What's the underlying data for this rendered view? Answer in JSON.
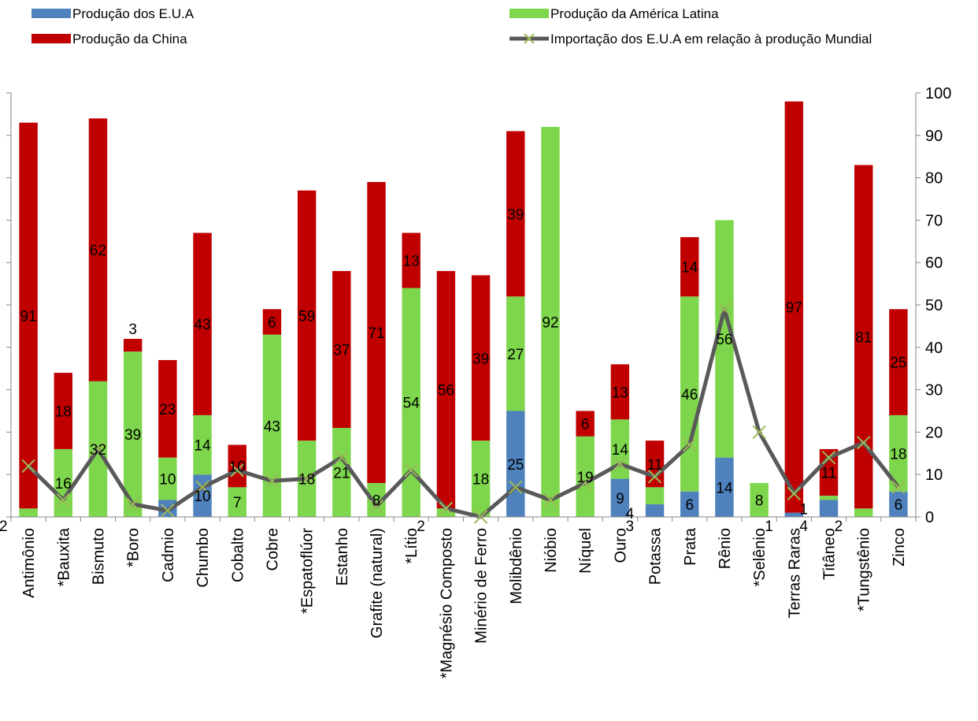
{
  "chart_data": {
    "type": "bar",
    "stacked": true,
    "categories": [
      "Antimônio",
      "*Bauxita",
      "Bismuto",
      "*Boro",
      "Cadmio",
      "Chumbo",
      "Cobalto",
      "Cobre",
      "*Espatoflúor",
      "Estanho",
      "Grafite (natural)",
      "*Lítio",
      "*Magnésio Composto",
      "Minério de Ferro",
      "Molibdênio",
      "Nióbio",
      "Níquel",
      "Ouro",
      "Potassa",
      "Prata",
      "Rênio",
      "*Selênio",
      "Terras Raras",
      "Titâneo",
      "*Tungstênio",
      "Zinco"
    ],
    "series": [
      {
        "name": "Produção dos E.U.A",
        "kind": "bar",
        "color": "#4f81bd",
        "values": [
          0,
          0,
          0,
          0,
          4,
          10,
          0,
          0,
          0,
          0,
          0,
          0,
          0,
          0,
          25,
          0,
          0,
          9,
          3,
          6,
          14,
          0,
          1,
          4,
          0,
          6
        ],
        "labels": [
          "",
          "",
          "",
          "",
          "",
          "10",
          "",
          "",
          "",
          "",
          "",
          "",
          "",
          "",
          "25",
          "",
          "",
          "9",
          "3",
          "6",
          "14",
          "",
          "1",
          "4",
          "",
          "6"
        ]
      },
      {
        "name": "Produção da América Latina",
        "kind": "bar",
        "color": "#7dd64c",
        "values": [
          2,
          16,
          32,
          39,
          10,
          14,
          7,
          43,
          18,
          21,
          8,
          54,
          2,
          18,
          27,
          92,
          19,
          14,
          4,
          46,
          56,
          8,
          0,
          1,
          2,
          18
        ],
        "labels": [
          "2",
          "16",
          "32",
          "39",
          "10",
          "14",
          "7",
          "43",
          "18",
          "21",
          "8",
          "54",
          "2",
          "18",
          "27",
          "92",
          "19",
          "14",
          "4",
          "46",
          "56",
          "8",
          "",
          "1",
          "2",
          "18"
        ]
      },
      {
        "name": "Produção da China",
        "kind": "bar",
        "color": "#c00000",
        "values": [
          91,
          18,
          62,
          3,
          23,
          43,
          10,
          6,
          59,
          37,
          71,
          13,
          56,
          39,
          39,
          0,
          6,
          13,
          11,
          14,
          0,
          0,
          97,
          11,
          81,
          25
        ],
        "labels": [
          "91",
          "18",
          "62",
          "3",
          "23",
          "43",
          "10",
          "6",
          "59",
          "37",
          "71",
          "13",
          "56",
          "39",
          "39",
          "",
          "6",
          "13",
          "11",
          "14",
          "",
          "",
          "97",
          "11",
          "81",
          "25"
        ]
      },
      {
        "name": "Importação dos E.U.A em relação à produção Mundial",
        "kind": "line",
        "color": "#595959",
        "marker_color": "#9bbb59",
        "values": [
          12,
          4,
          16,
          3,
          1.5,
          7,
          11,
          8.5,
          9,
          14,
          2.5,
          11,
          2,
          0,
          7,
          4,
          8,
          12.5,
          9.5,
          17,
          49,
          20,
          5.5,
          14,
          17.5,
          7
        ]
      }
    ],
    "y_axis": {
      "position": "right",
      "min": 0,
      "max": 100,
      "step": 10,
      "ticks": [
        "0",
        "10",
        "20",
        "30",
        "40",
        "50",
        "60",
        "70",
        "80",
        "90",
        "100"
      ]
    },
    "grid": false,
    "legend": "top"
  }
}
